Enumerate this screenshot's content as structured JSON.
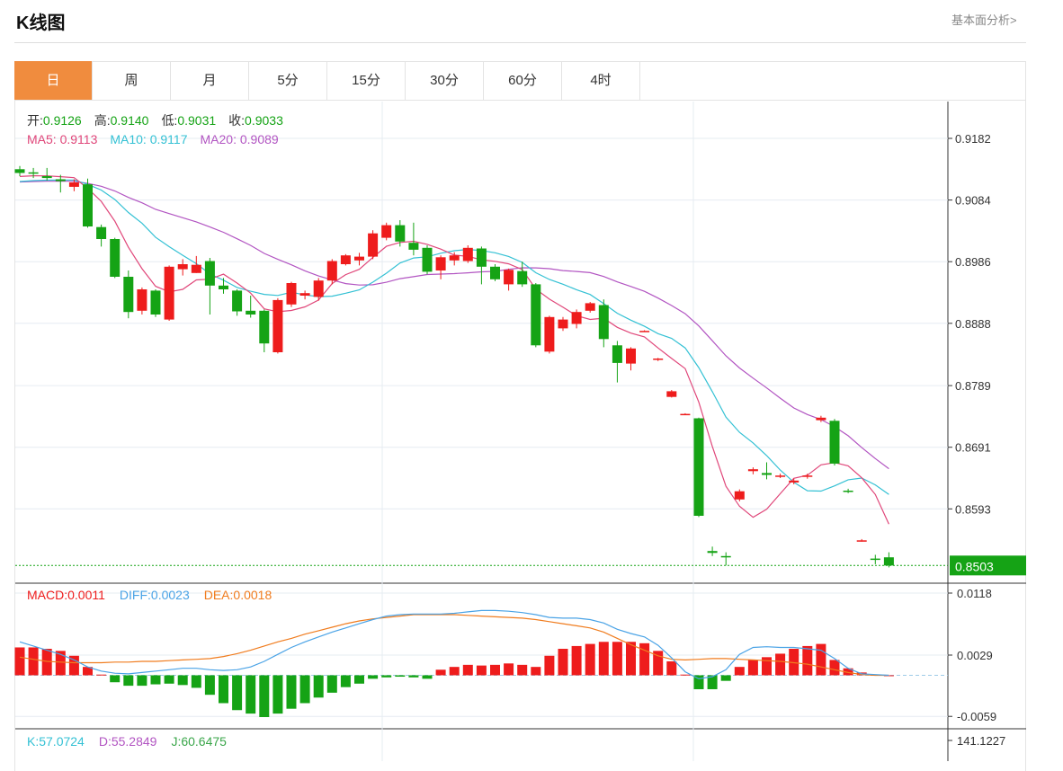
{
  "header": {
    "title": "K线图",
    "fundamental_link": "基本面分析>"
  },
  "tabs": [
    {
      "label": "日",
      "active": true
    },
    {
      "label": "周"
    },
    {
      "label": "月"
    },
    {
      "label": "5分"
    },
    {
      "label": "15分"
    },
    {
      "label": "30分"
    },
    {
      "label": "60分"
    },
    {
      "label": "4时"
    }
  ],
  "ohlc_legend": {
    "open_label": "开:",
    "open": "0.9126",
    "high_label": "高:",
    "high": "0.9140",
    "low_label": "低:",
    "low": "0.9031",
    "close_label": "收:",
    "close": "0.9033"
  },
  "ma_legend": {
    "ma5_label": "MA5:",
    "ma5": "0.9113",
    "ma10_label": "MA10:",
    "ma10": "0.9117",
    "ma20_label": "MA20:",
    "ma20": "0.9089"
  },
  "macd_legend": {
    "macd_label": "MACD:",
    "macd": "0.0011",
    "diff_label": "DIFF:",
    "diff": "0.0023",
    "dea_label": "DEA:",
    "dea": "0.0018"
  },
  "kdj_legend": {
    "k_label": "K:",
    "k": "57.0724",
    "d_label": "D:",
    "d": "55.2849",
    "j_label": "J:",
    "j": "60.6475"
  },
  "colors": {
    "up": "#ee1c1c",
    "down": "#15a315",
    "ma5": "#e0477a",
    "ma10": "#34c1d4",
    "ma20": "#b255c2",
    "diff": "#4aa3e6",
    "dea": "#f07c1e",
    "tab_active": "#f08c3e"
  },
  "chart_data": {
    "type": "candlestick",
    "price_axis": {
      "ticks": [
        0.9182,
        0.9084,
        0.8986,
        0.8888,
        0.8789,
        0.8691,
        0.8593
      ],
      "current": 0.8503,
      "current_label": "0.8503"
    },
    "macd_axis": {
      "ticks": [
        0.0118,
        0.0029,
        -0.0059
      ]
    },
    "kdj_axis": {
      "ticks": [
        141.1227
      ]
    },
    "candles": [
      [
        0.9133,
        0.9127,
        0.9138,
        0.9122
      ],
      [
        0.9128,
        0.9126,
        0.9135,
        0.9119
      ],
      [
        0.9122,
        0.9119,
        0.9135,
        0.9115
      ],
      [
        0.9117,
        0.9114,
        0.9124,
        0.9096
      ],
      [
        0.9105,
        0.9112,
        0.9117,
        0.9098
      ],
      [
        0.9109,
        0.9042,
        0.9118,
        0.904
      ],
      [
        0.9041,
        0.9022,
        0.9045,
        0.901
      ],
      [
        0.9022,
        0.8962,
        0.9024,
        0.896
      ],
      [
        0.8962,
        0.8906,
        0.8972,
        0.8896
      ],
      [
        0.8908,
        0.8942,
        0.8945,
        0.8902
      ],
      [
        0.894,
        0.8902,
        0.8942,
        0.8898
      ],
      [
        0.8894,
        0.8978,
        0.898,
        0.8892
      ],
      [
        0.8974,
        0.8982,
        0.899,
        0.8964
      ],
      [
        0.8968,
        0.8981,
        0.8995,
        0.8968
      ],
      [
        0.8987,
        0.8948,
        0.8992,
        0.8902
      ],
      [
        0.8948,
        0.8942,
        0.896,
        0.8935
      ],
      [
        0.894,
        0.8907,
        0.8942,
        0.89
      ],
      [
        0.8908,
        0.8902,
        0.8932,
        0.8897
      ],
      [
        0.8908,
        0.8856,
        0.891,
        0.8842
      ],
      [
        0.8842,
        0.8925,
        0.8928,
        0.884
      ],
      [
        0.8918,
        0.8952,
        0.8954,
        0.8914
      ],
      [
        0.8932,
        0.8936,
        0.894,
        0.8926
      ],
      [
        0.893,
        0.8956,
        0.896,
        0.8924
      ],
      [
        0.8956,
        0.8987,
        0.899,
        0.895
      ],
      [
        0.8982,
        0.8996,
        0.8998,
        0.898
      ],
      [
        0.8988,
        0.8994,
        0.9,
        0.898
      ],
      [
        0.8994,
        0.9031,
        0.9036,
        0.899
      ],
      [
        0.9024,
        0.9044,
        0.9048,
        0.902
      ],
      [
        0.9044,
        0.9018,
        0.9052,
        0.901
      ],
      [
        0.9016,
        0.9005,
        0.9048,
        0.8996
      ],
      [
        0.9008,
        0.897,
        0.9012,
        0.8966
      ],
      [
        0.8972,
        0.8993,
        0.8996,
        0.8958
      ],
      [
        0.8988,
        0.8996,
        0.9001,
        0.898
      ],
      [
        0.8987,
        0.9008,
        0.9012,
        0.8984
      ],
      [
        0.9007,
        0.8978,
        0.901,
        0.895
      ],
      [
        0.8978,
        0.8958,
        0.8982,
        0.8955
      ],
      [
        0.895,
        0.8973,
        0.8975,
        0.894
      ],
      [
        0.8971,
        0.895,
        0.8986,
        0.8946
      ],
      [
        0.895,
        0.8853,
        0.8952,
        0.885
      ],
      [
        0.8843,
        0.8898,
        0.89,
        0.884
      ],
      [
        0.888,
        0.8894,
        0.8898,
        0.8876
      ],
      [
        0.8887,
        0.8906,
        0.891,
        0.888
      ],
      [
        0.8908,
        0.892,
        0.8922,
        0.8905
      ],
      [
        0.8917,
        0.8863,
        0.8926,
        0.885
      ],
      [
        0.8853,
        0.8825,
        0.886,
        0.8794
      ],
      [
        0.8824,
        0.8848,
        0.885,
        0.8813
      ],
      [
        0.8875,
        0.8876,
        0.8877,
        0.8875
      ],
      [
        0.883,
        0.8832,
        0.8833,
        0.8828
      ],
      [
        0.8771,
        0.878,
        0.8782,
        0.877
      ],
      [
        0.8743,
        0.8744,
        0.8745,
        0.8742
      ],
      [
        0.8737,
        0.8582,
        0.8738,
        0.858
      ],
      [
        0.8526,
        0.8523,
        0.8533,
        0.8518
      ],
      [
        0.8518,
        0.8516,
        0.8524,
        0.8503
      ],
      [
        0.8608,
        0.8621,
        0.8624,
        0.8605
      ],
      [
        0.8653,
        0.8656,
        0.8659,
        0.8648
      ],
      [
        0.865,
        0.8647,
        0.8667,
        0.864
      ],
      [
        0.8644,
        0.8646,
        0.8649,
        0.8642
      ],
      [
        0.8635,
        0.8638,
        0.8641,
        0.8632
      ],
      [
        0.8644,
        0.8646,
        0.8649,
        0.8641
      ],
      [
        0.8734,
        0.8738,
        0.8741,
        0.8731
      ],
      [
        0.8733,
        0.8665,
        0.8736,
        0.8662
      ],
      [
        0.8622,
        0.862,
        0.8625,
        0.8618
      ],
      [
        0.8543,
        0.8543,
        0.8545,
        0.8541
      ],
      [
        0.8514,
        0.8513,
        0.852,
        0.8505
      ],
      [
        0.8516,
        0.8503,
        0.8524,
        0.85
      ]
    ],
    "macd_hist": [
      0.004,
      0.004,
      0.0038,
      0.0035,
      0.0028,
      0.0012,
      0.0001,
      -0.001,
      -0.0015,
      -0.0015,
      -0.0013,
      -0.0012,
      -0.0014,
      -0.0018,
      -0.0028,
      -0.004,
      -0.005,
      -0.0055,
      -0.006,
      -0.0055,
      -0.0048,
      -0.004,
      -0.0032,
      -0.0025,
      -0.0017,
      -0.0012,
      -0.0005,
      -0.0003,
      -0.0002,
      -0.0003,
      -0.0005,
      0.0008,
      0.0012,
      0.0015,
      0.0014,
      0.0015,
      0.0017,
      0.0015,
      0.0012,
      0.0028,
      0.0038,
      0.0042,
      0.0045,
      0.0048,
      0.0048,
      0.0048,
      0.0046,
      0.0035,
      0.002,
      0.0001,
      -0.002,
      -0.002,
      -0.0008,
      0.0012,
      0.0022,
      0.0026,
      0.0031,
      0.0038,
      0.0042,
      0.0045,
      0.0022,
      0.001,
      0.0004,
      0.0001,
      0.0
    ],
    "diff": [
      0.0048,
      0.0042,
      0.0036,
      0.003,
      0.0022,
      0.0012,
      0.0006,
      0.0003,
      0.0002,
      0.0004,
      0.0006,
      0.0008,
      0.001,
      0.001,
      0.0008,
      0.0007,
      0.0008,
      0.0012,
      0.002,
      0.003,
      0.004,
      0.0048,
      0.0055,
      0.0062,
      0.0068,
      0.0074,
      0.008,
      0.0085,
      0.0087,
      0.0088,
      0.0088,
      0.0088,
      0.0089,
      0.0091,
      0.0093,
      0.0093,
      0.0092,
      0.009,
      0.0087,
      0.0083,
      0.0082,
      0.0082,
      0.008,
      0.0075,
      0.0066,
      0.006,
      0.0055,
      0.0043,
      0.0025,
      0.0005,
      -0.0005,
      -0.0002,
      0.0008,
      0.003,
      0.004,
      0.0041,
      0.004,
      0.004,
      0.0038,
      0.0036,
      0.0024,
      0.001,
      0.0002,
      0.0001,
      0.0
    ],
    "dea": [
      0.0026,
      0.0023,
      0.002,
      0.0019,
      0.0018,
      0.0018,
      0.0018,
      0.0019,
      0.0019,
      0.002,
      0.002,
      0.0021,
      0.0022,
      0.0023,
      0.0024,
      0.0027,
      0.0031,
      0.0036,
      0.0042,
      0.0048,
      0.0053,
      0.0059,
      0.0064,
      0.0069,
      0.0074,
      0.0078,
      0.0081,
      0.0083,
      0.0085,
      0.0087,
      0.0087,
      0.0087,
      0.0087,
      0.0086,
      0.0085,
      0.0084,
      0.0083,
      0.0082,
      0.008,
      0.0077,
      0.0074,
      0.0071,
      0.0068,
      0.0062,
      0.0053,
      0.0044,
      0.0036,
      0.0028,
      0.0023,
      0.0022,
      0.0023,
      0.0024,
      0.0024,
      0.0023,
      0.0022,
      0.0021,
      0.002,
      0.0018,
      0.0016,
      0.0012,
      0.0008,
      0.0004,
      0.0001,
      0.0,
      0.0
    ]
  }
}
